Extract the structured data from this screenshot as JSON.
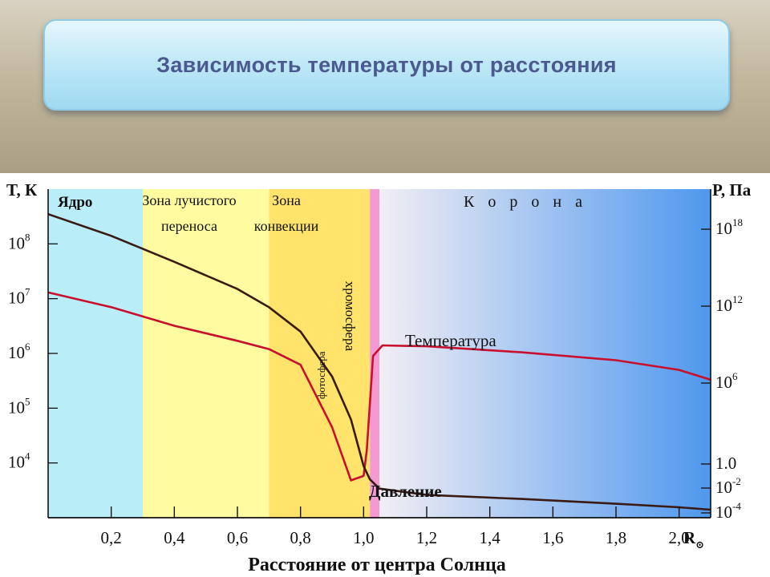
{
  "title": "Зависимость температуры от расстояния",
  "colors": {
    "core": "#b9eef9",
    "radiative": "#fffba0",
    "convection": "#ffe36a",
    "chromosphere": "#f39ad2",
    "corona_start": "#f2eef4",
    "corona_end": "#4f98ee",
    "temperature_line": "#c8102e",
    "pressure_line": "#3a1a14"
  },
  "chart_data": {
    "type": "line",
    "title": "",
    "xlabel": "Расстояние от центра Солнца",
    "x_unit": "R⊙",
    "x_ticks": [
      "0,2",
      "0,4",
      "0,6",
      "0,8",
      "1,0",
      "1,2",
      "1,4",
      "1,6",
      "1,8",
      "2,0"
    ],
    "xlim": [
      0,
      2.1
    ],
    "y_left": {
      "label": "T, К",
      "scale": "log",
      "ticks": [
        {
          "base": "10",
          "exp": "8"
        },
        {
          "base": "10",
          "exp": "7"
        },
        {
          "base": "10",
          "exp": "6"
        },
        {
          "base": "10",
          "exp": "5"
        },
        {
          "base": "10",
          "exp": "4"
        }
      ],
      "ylim": [
        1000,
        1000000000
      ]
    },
    "y_right": {
      "label": "P, Па",
      "scale": "log",
      "ticks": [
        {
          "base": "10",
          "exp": "18"
        },
        {
          "base": "10",
          "exp": "12"
        },
        {
          "base": "10",
          "exp": "6"
        },
        {
          "base": "1.0",
          "exp": ""
        },
        {
          "base": "10",
          "exp": "-2"
        },
        {
          "base": "10",
          "exp": "-4"
        }
      ]
    },
    "zones": [
      {
        "name": "Ядро",
        "from": 0.0,
        "to": 0.3
      },
      {
        "name": "Зона лучистого переноса",
        "from": 0.3,
        "to": 0.7
      },
      {
        "name": "Зона конвекции",
        "from": 0.7,
        "to": 1.0
      },
      {
        "name": "фотосфера",
        "from": 1.0,
        "to": 1.02
      },
      {
        "name": "хромосфера",
        "from": 1.02,
        "to": 1.05
      },
      {
        "name": "К о р о н а",
        "from": 1.05,
        "to": 2.1
      }
    ],
    "series": [
      {
        "name": "Температура",
        "x": [
          0.0,
          0.2,
          0.4,
          0.6,
          0.7,
          0.8,
          0.9,
          0.96,
          1.0,
          1.01,
          1.03,
          1.06,
          1.2,
          1.5,
          1.8,
          2.0,
          2.1
        ],
        "y": [
          13000000,
          7000000,
          3200000,
          1700000,
          1200000,
          620000,
          45000,
          4800,
          5800,
          17000,
          900000,
          1400000,
          1350000,
          1050000,
          750000,
          500000,
          330000
        ]
      },
      {
        "name": "Давление",
        "x": [
          0.0,
          0.2,
          0.4,
          0.6,
          0.7,
          0.8,
          0.9,
          0.96,
          1.0,
          1.02,
          1.05,
          1.2,
          1.5,
          1.8,
          2.0,
          2.1
        ],
        "y": [
          350000000,
          140000000,
          47000000,
          15000000,
          7000000,
          2500000,
          380000,
          62000,
          8800,
          5000,
          3400,
          2600,
          2200,
          1800,
          1550,
          1400
        ]
      }
    ],
    "annotations": [
      "Температура",
      "Давление"
    ]
  }
}
